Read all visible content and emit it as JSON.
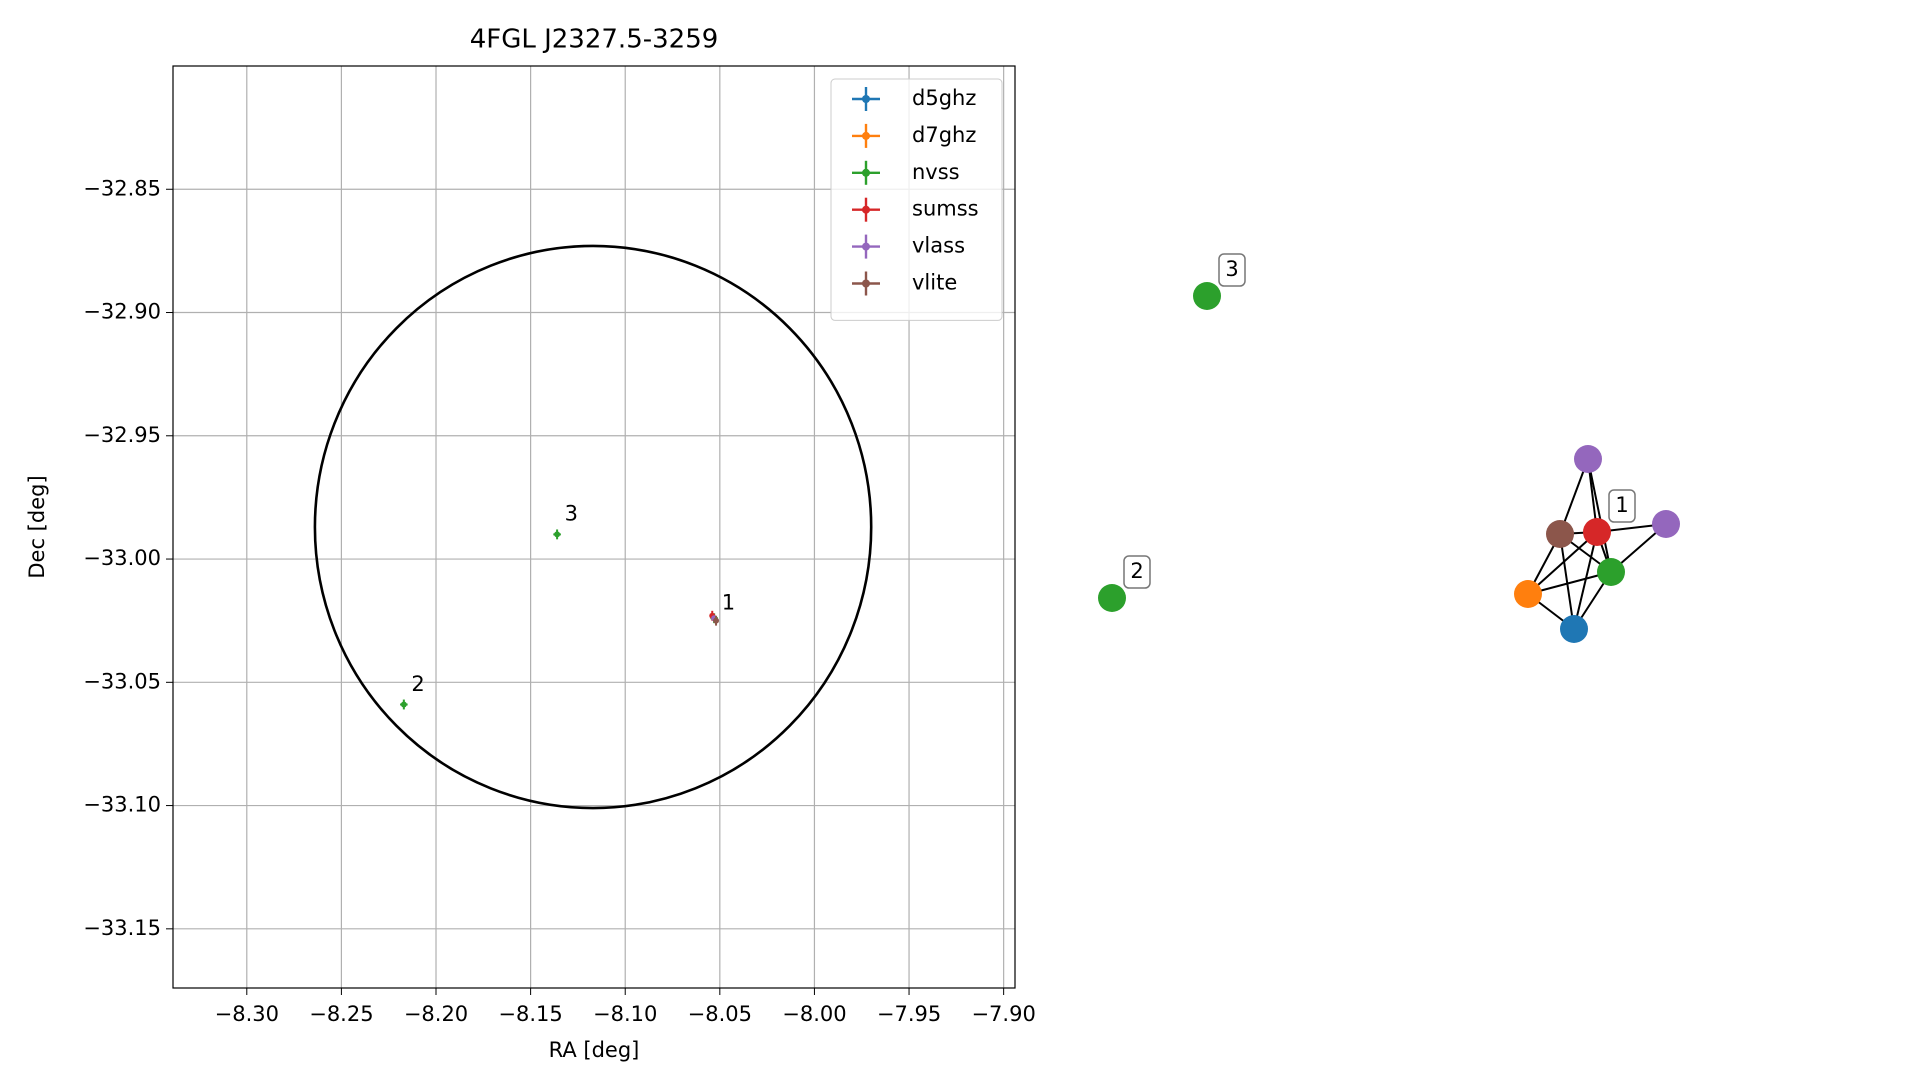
{
  "chart_data": [
    {
      "type": "scatter",
      "title": "4FGL J2327.5-3259",
      "xlabel": "RA [deg]",
      "ylabel": "Dec [deg]",
      "xlim": [
        -8.339,
        -7.894
      ],
      "ylim": [
        -33.174,
        -32.8
      ],
      "xticks": [
        {
          "value": -8.3,
          "label": "−8.30"
        },
        {
          "value": -8.25,
          "label": "−8.25"
        },
        {
          "value": -8.2,
          "label": "−8.20"
        },
        {
          "value": -8.15,
          "label": "−8.15"
        },
        {
          "value": -8.1,
          "label": "−8.10"
        },
        {
          "value": -8.05,
          "label": "−8.05"
        },
        {
          "value": -8.0,
          "label": "−8.00"
        },
        {
          "value": -7.95,
          "label": "−7.95"
        },
        {
          "value": -7.9,
          "label": "−7.90"
        }
      ],
      "yticks": [
        {
          "value": -32.85,
          "label": "−32.85"
        },
        {
          "value": -32.9,
          "label": "−32.90"
        },
        {
          "value": -32.95,
          "label": "−32.95"
        },
        {
          "value": -33.0,
          "label": "−33.00"
        },
        {
          "value": -33.05,
          "label": "−33.05"
        },
        {
          "value": -33.1,
          "label": "−33.10"
        },
        {
          "value": -33.15,
          "label": "−33.15"
        }
      ],
      "grid": true,
      "legend": "upper right",
      "circle": {
        "center": [
          -8.117,
          -32.987
        ],
        "radius_x": 0.147,
        "radius_y": 0.114
      },
      "series": [
        {
          "name": "d5ghz",
          "color": "#1f77b4",
          "x": [
            -8.053
          ],
          "y": [
            -33.024
          ],
          "xerr": [
            0.001
          ],
          "yerr": [
            0.001
          ]
        },
        {
          "name": "d7ghz",
          "color": "#ff7f0e",
          "x": [
            -8.053
          ],
          "y": [
            -33.024
          ],
          "xerr": [
            0.001
          ],
          "yerr": [
            0.001
          ]
        },
        {
          "name": "nvss",
          "color": "#2ca02c",
          "x": [
            -8.053,
            -8.217,
            -8.136
          ],
          "y": [
            -33.024,
            -33.059,
            -32.99
          ],
          "xerr": [
            0.002,
            0.002,
            0.002
          ],
          "yerr": [
            0.002,
            0.002,
            0.002
          ]
        },
        {
          "name": "sumss",
          "color": "#d62728",
          "x": [
            -8.054
          ],
          "y": [
            -33.023
          ],
          "xerr": [
            0.001
          ],
          "yerr": [
            0.002
          ]
        },
        {
          "name": "vlass",
          "color": "#9467bd",
          "x": [
            -8.053
          ],
          "y": [
            -33.024
          ],
          "xerr": [
            0.001
          ],
          "yerr": [
            0.001
          ]
        },
        {
          "name": "vlite",
          "color": "#8c564b",
          "x": [
            -8.052
          ],
          "y": [
            -33.025
          ],
          "xerr": [
            0.001
          ],
          "yerr": [
            0.002
          ]
        }
      ],
      "annotations": [
        {
          "text": "1",
          "x": -8.049,
          "y": -33.018
        },
        {
          "text": "2",
          "x": -8.213,
          "y": -33.051
        },
        {
          "text": "3",
          "x": -8.132,
          "y": -32.982
        }
      ]
    },
    {
      "type": "network",
      "nodes": [
        {
          "color": "#2ca02c",
          "label": "3"
        },
        {
          "color": "#2ca02c",
          "label": "2"
        },
        {
          "color": "#9467bd"
        },
        {
          "color": "#9467bd"
        },
        {
          "color": "#d62728",
          "label": "1"
        },
        {
          "color": "#8c564b"
        },
        {
          "color": "#2ca02c"
        },
        {
          "color": "#ff7f0e"
        },
        {
          "color": "#1f77b4"
        }
      ],
      "edges": [
        [
          8,
          7
        ],
        [
          8,
          5
        ],
        [
          8,
          6
        ],
        [
          8,
          4
        ],
        [
          7,
          5
        ],
        [
          7,
          4
        ],
        [
          7,
          6
        ],
        [
          5,
          4
        ],
        [
          5,
          2
        ],
        [
          4,
          2
        ],
        [
          6,
          2
        ],
        [
          6,
          3
        ],
        [
          4,
          3
        ],
        [
          5,
          6
        ],
        [
          4,
          6
        ]
      ]
    }
  ]
}
